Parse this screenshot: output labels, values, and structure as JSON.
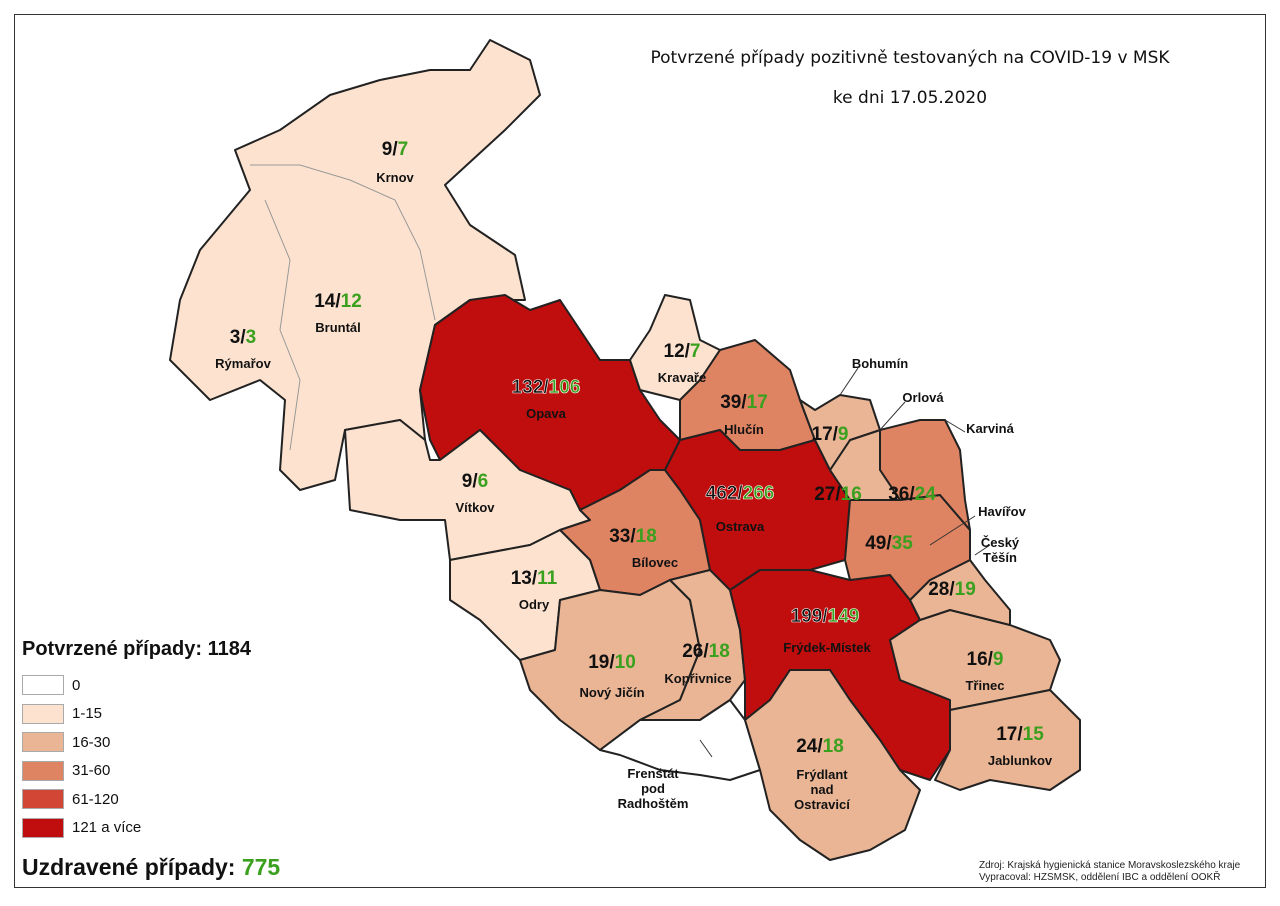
{
  "title_line1": "Potvrzené případy pozitivně testovaných na COVID-19 v MSK",
  "title_line2": "ke dni 17.05.2020",
  "legend": {
    "title": "Potvrzené případy: 1184",
    "items": [
      {
        "label": "0",
        "color": "#ffffff"
      },
      {
        "label": "1-15",
        "color": "#fde3cf"
      },
      {
        "label": "16-30",
        "color": "#eab595"
      },
      {
        "label": "31-60",
        "color": "#df8463"
      },
      {
        "label": "61-120",
        "color": "#d24636"
      },
      {
        "label": "121 a více",
        "color": "#c00d0d"
      }
    ]
  },
  "recovered": {
    "label": "Uzdravené případy:",
    "value": "775",
    "color": "#3aa01e"
  },
  "source": {
    "line1": "Zdroj: Krajská hygienická stanice Moravskoslezského kraje",
    "line2": "Vypracoval: HZSMSK, oddělení IBC a oddělení OOKŘ"
  },
  "regions": [
    {
      "name": "Krnov",
      "confirmed": "9",
      "recovered": "7",
      "category": 1
    },
    {
      "name": "Bruntál",
      "confirmed": "14",
      "recovered": "12",
      "category": 1
    },
    {
      "name": "Rýmařov",
      "confirmed": "3",
      "recovered": "3",
      "category": 1
    },
    {
      "name": "Opava",
      "confirmed": "132",
      "recovered": "106",
      "category": 5
    },
    {
      "name": "Kravaře",
      "confirmed": "12",
      "recovered": "7",
      "category": 1
    },
    {
      "name": "Hlučín",
      "confirmed": "39",
      "recovered": "17",
      "category": 3
    },
    {
      "name": "Vítkov",
      "confirmed": "9",
      "recovered": "6",
      "category": 1
    },
    {
      "name": "Bílovec",
      "confirmed": "33",
      "recovered": "18",
      "category": 3
    },
    {
      "name": "Ostrava",
      "confirmed": "462",
      "recovered": "266",
      "category": 5
    },
    {
      "name": "Odry",
      "confirmed": "13",
      "recovered": "11",
      "category": 1
    },
    {
      "name": "Nový Jičín",
      "confirmed": "19",
      "recovered": "10",
      "category": 2
    },
    {
      "name": "Kopřivnice",
      "confirmed": "26",
      "recovered": "18",
      "category": 2
    },
    {
      "name": "Frenštát pod Radhoštěm",
      "confirmed": "",
      "recovered": "",
      "category": 0
    },
    {
      "name": "Frýdek-Místek",
      "confirmed": "199",
      "recovered": "149",
      "category": 5
    },
    {
      "name": "Frýdlant nad Ostravicí",
      "confirmed": "24",
      "recovered": "18",
      "category": 2
    },
    {
      "name": "Třinec",
      "confirmed": "16",
      "recovered": "9",
      "category": 2
    },
    {
      "name": "Jablunkov",
      "confirmed": "17",
      "recovered": "15",
      "category": 2
    },
    {
      "name": "Český Těšín",
      "confirmed": "28",
      "recovered": "19",
      "category": 2
    },
    {
      "name": "Havířov",
      "confirmed": "49",
      "recovered": "35",
      "category": 3
    },
    {
      "name": "Karviná",
      "confirmed": "36",
      "recovered": "24",
      "category": 3
    },
    {
      "name": "Orlová",
      "confirmed": "27",
      "recovered": "16",
      "category": 2
    },
    {
      "name": "Bohumín",
      "confirmed": "17",
      "recovered": "9",
      "category": 2
    }
  ]
}
